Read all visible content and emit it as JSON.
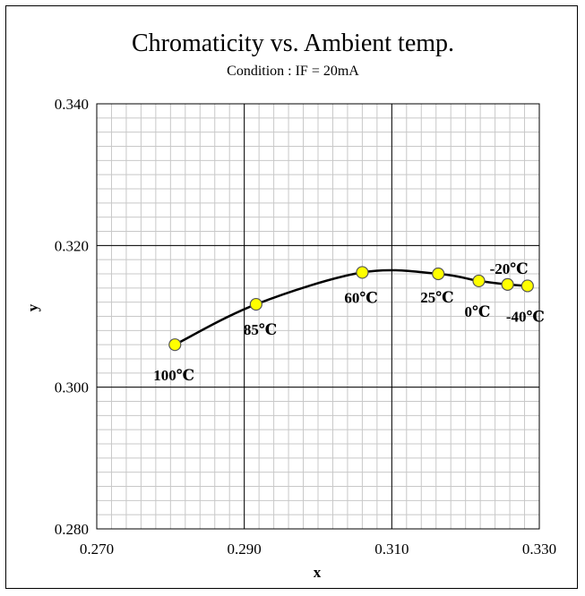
{
  "chart_data": {
    "type": "scatter",
    "title": "Chromaticity vs. Ambient temp.",
    "subtitle": "Condition : IF = 20mA",
    "xlabel": "x",
    "ylabel": "y",
    "xlim": [
      0.27,
      0.33
    ],
    "ylim": [
      0.28,
      0.34
    ],
    "x_ticks": [
      "0.270",
      "0.290",
      "0.310",
      "0.330"
    ],
    "y_ticks": [
      "0.280",
      "0.300",
      "0.320",
      "0.340"
    ],
    "grid": true,
    "line": "smooth curve",
    "marker_color": "#ffff00",
    "points": [
      {
        "label": "100℃",
        "x": 0.2806,
        "y": 0.306
      },
      {
        "label": "85℃",
        "x": 0.2916,
        "y": 0.3117
      },
      {
        "label": "60℃",
        "x": 0.306,
        "y": 0.3162
      },
      {
        "label": "25℃",
        "x": 0.3163,
        "y": 0.316
      },
      {
        "label": "0℃",
        "x": 0.3218,
        "y": 0.315
      },
      {
        "label": "-20℃",
        "x": 0.3257,
        "y": 0.3145
      },
      {
        "label": "-40℃",
        "x": 0.3284,
        "y": 0.3143
      }
    ]
  }
}
